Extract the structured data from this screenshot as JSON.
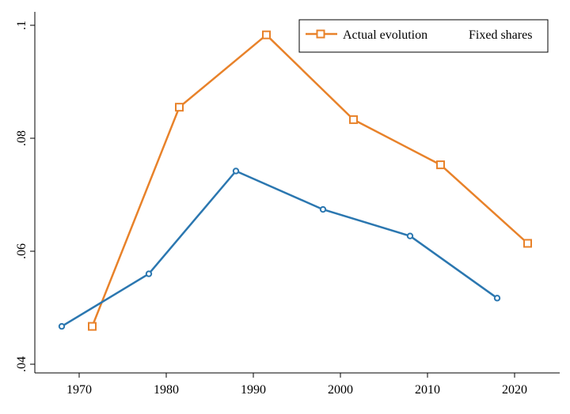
{
  "chart_data": {
    "type": "line",
    "x_ticks": [
      1970,
      1980,
      1990,
      2000,
      2010,
      2020
    ],
    "y_ticks": [
      ".04",
      ".06",
      ".08",
      ".1"
    ],
    "xlim": [
      1965,
      2025
    ],
    "ylim": [
      0.04,
      0.1
    ],
    "series": [
      {
        "name": "Actual evolution",
        "color": "#e8822a",
        "marker": "square",
        "x": [
          1971.5,
          1981.5,
          1991.5,
          2001.5,
          2011.5,
          2021.5
        ],
        "y": [
          0.0467,
          0.0855,
          0.0983,
          0.0833,
          0.0753,
          0.0614
        ]
      },
      {
        "name": "Fixed shares",
        "color": "#2b77b0",
        "marker": "circle",
        "x": [
          1968,
          1978,
          1988,
          1998,
          2008,
          2018
        ],
        "y": [
          0.0467,
          0.056,
          0.0742,
          0.0674,
          0.0627,
          0.0517
        ]
      }
    ],
    "legend": {
      "position": "top-right",
      "labels": [
        "Actual evolution",
        "Fixed shares"
      ]
    }
  }
}
